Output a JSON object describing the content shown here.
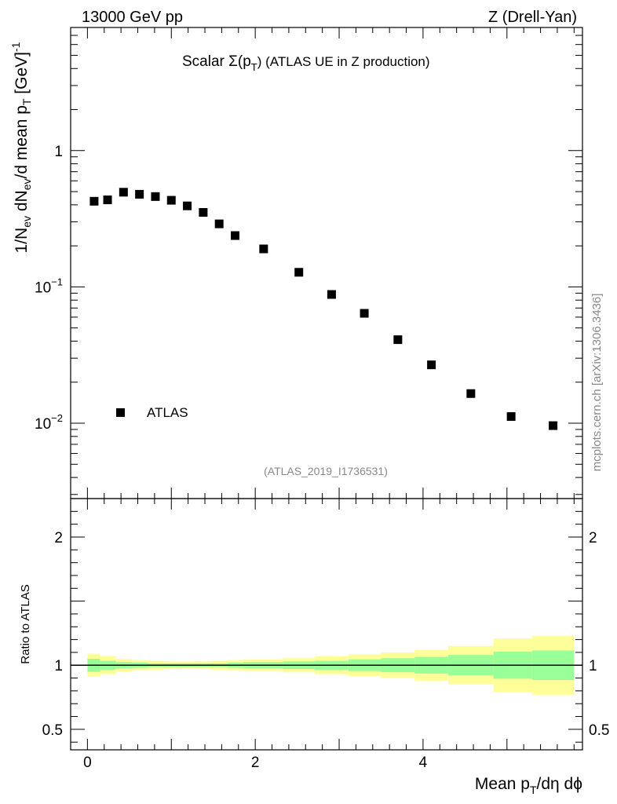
{
  "header": {
    "left": "13000 GeV pp",
    "right": "Z (Drell-Yan)"
  },
  "title": {
    "prefix": "Scalar Σ(p",
    "sub": "T",
    "suffix": ")  (ATLAS UE in Z production)"
  },
  "side_label": "mcplots.cern.ch [arXiv:1306.3436]",
  "analysis_label": "(ATLAS_2019_I1736531)",
  "ylabel": {
    "p1": "1/N",
    "s1": "ev",
    "p2": " dN",
    "s2": "ev",
    "p3": "/d mean p",
    "s3": "T",
    "p4": " [GeV]",
    "sup": "-1"
  },
  "ratio_ylabel": "Ratio to ATLAS",
  "xlabel": {
    "p1": "Mean p",
    "s1": "T",
    "p2": "/dη dϕ"
  },
  "legend": {
    "label": "ATLAS"
  },
  "colors": {
    "marker": "#000000",
    "band_outer": "#ffff99",
    "band_inner": "#99ff99"
  },
  "chart_data": {
    "type": "scatter",
    "main": {
      "yscale": "log",
      "xlim": [
        -0.2,
        5.9
      ],
      "ylim": [
        0.0028,
        8.0
      ],
      "yticks": [
        {
          "value": 1,
          "label": "1"
        },
        {
          "value": 0.1,
          "label": "10",
          "exp": "−1"
        },
        {
          "value": 0.01,
          "label": "10",
          "exp": "−2"
        }
      ],
      "series": [
        {
          "name": "ATLAS",
          "x": [
            0.08,
            0.24,
            0.43,
            0.62,
            0.81,
            1.0,
            1.19,
            1.38,
            1.57,
            1.76,
            2.1,
            2.52,
            2.91,
            3.3,
            3.7,
            4.1,
            4.57,
            5.05,
            5.55
          ],
          "y": [
            0.425,
            0.435,
            0.495,
            0.478,
            0.46,
            0.432,
            0.393,
            0.352,
            0.29,
            0.238,
            0.19,
            0.128,
            0.088,
            0.064,
            0.041,
            0.0268,
            0.0165,
            0.0112,
            0.0096
          ]
        }
      ]
    },
    "ratio": {
      "ylim": [
        0.34,
        2.3
      ],
      "yticks": [
        {
          "value": 2,
          "label": "2"
        },
        {
          "value": 1,
          "label": "1"
        },
        {
          "value": 0.5,
          "label": "0.5"
        }
      ],
      "xticks": [
        {
          "value": 0,
          "label": "0"
        },
        {
          "value": 2,
          "label": "2"
        },
        {
          "value": 4,
          "label": "4"
        }
      ],
      "reference": 1.0,
      "bands": {
        "edges": [
          0,
          0.15,
          0.34,
          0.53,
          0.72,
          0.91,
          1.1,
          1.29,
          1.48,
          1.67,
          1.86,
          2.33,
          2.71,
          3.11,
          3.5,
          3.9,
          4.3,
          4.84,
          5.3,
          5.8
        ],
        "outer_lo": [
          0.91,
          0.93,
          0.95,
          0.96,
          0.965,
          0.97,
          0.97,
          0.97,
          0.965,
          0.96,
          0.955,
          0.945,
          0.93,
          0.915,
          0.9,
          0.88,
          0.85,
          0.79,
          0.77
        ],
        "outer_hi": [
          1.09,
          1.07,
          1.05,
          1.04,
          1.035,
          1.03,
          1.03,
          1.03,
          1.035,
          1.04,
          1.045,
          1.055,
          1.07,
          1.085,
          1.1,
          1.12,
          1.15,
          1.21,
          1.23
        ],
        "inner_lo": [
          0.95,
          0.965,
          0.975,
          0.98,
          0.985,
          0.985,
          0.985,
          0.985,
          0.985,
          0.98,
          0.975,
          0.97,
          0.965,
          0.955,
          0.945,
          0.935,
          0.92,
          0.895,
          0.885
        ],
        "inner_hi": [
          1.05,
          1.035,
          1.025,
          1.02,
          1.015,
          1.015,
          1.015,
          1.015,
          1.015,
          1.02,
          1.025,
          1.03,
          1.035,
          1.045,
          1.055,
          1.065,
          1.08,
          1.105,
          1.115
        ]
      }
    }
  }
}
